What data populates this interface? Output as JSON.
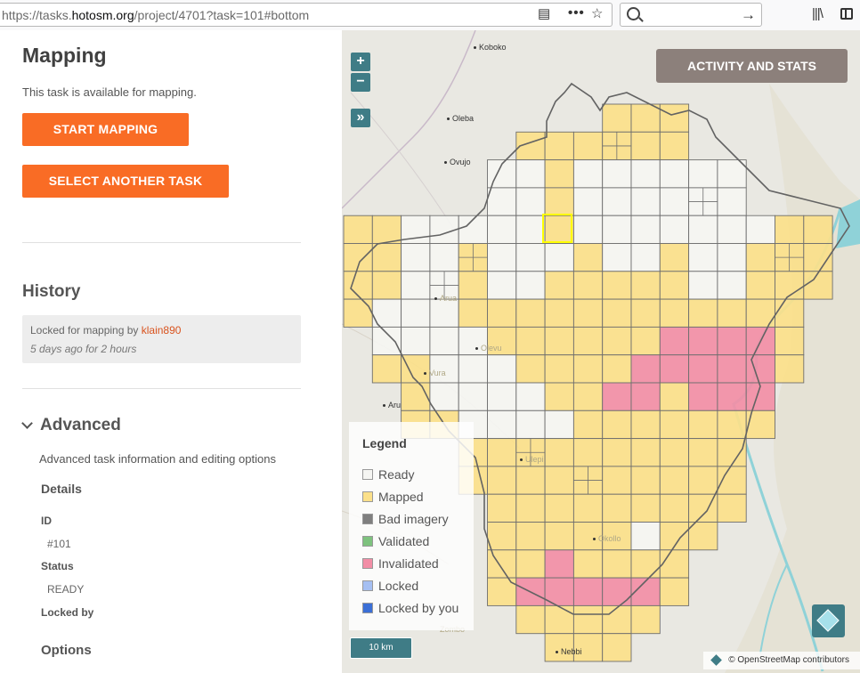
{
  "browser": {
    "url_prefix": "https://tasks.",
    "url_domain": "hotosm.org",
    "url_path": "/project/4701?task=101#bottom"
  },
  "panel": {
    "title": "Mapping",
    "availability": "This task is available for mapping.",
    "start_button": "START MAPPING",
    "select_button": "SELECT ANOTHER TASK",
    "history_title": "History",
    "history_entry": {
      "text": "Locked for mapping by",
      "user": "klain890",
      "time": "5 days ago for 2 hours"
    },
    "advanced_title": "Advanced",
    "advanced_desc": "Advanced task information and editing options",
    "details_title": "Details",
    "id_label": "ID",
    "id_value": "#101",
    "status_label": "Status",
    "status_value": "READY",
    "locked_by_label": "Locked by",
    "options_title": "Options"
  },
  "map": {
    "zoom_in": "+",
    "zoom_out": "−",
    "expand": "»",
    "activity_button": "ACTIVITY AND STATS",
    "scale": "10 km",
    "attribution": "© OpenStreetMap contributors",
    "places": [
      "Koboko",
      "Oleba",
      "Ovujo",
      "Arua",
      "Olevu",
      "Vura",
      "Aru",
      "Ulepi",
      "Okollo",
      "Zombo",
      "Nebbi"
    ],
    "legend": {
      "title": "Legend",
      "items": [
        {
          "label": "Ready",
          "color": "#f5f5f2"
        },
        {
          "label": "Mapped",
          "color": "#fbe08a"
        },
        {
          "label": "Bad imagery",
          "color": "#7f7f7f"
        },
        {
          "label": "Validated",
          "color": "#7ec27e"
        },
        {
          "label": "Invalidated",
          "color": "#f28ea6"
        },
        {
          "label": "Locked",
          "color": "#a5bff2"
        },
        {
          "label": "Locked by you",
          "color": "#3b6fd6"
        }
      ]
    },
    "colors": {
      "ready": "#f5f5f2",
      "mapped": "#fbe08a",
      "invalidated": "#f28ea6",
      "selected_outline": "#ffff00",
      "water": "#7fcfd6"
    }
  }
}
